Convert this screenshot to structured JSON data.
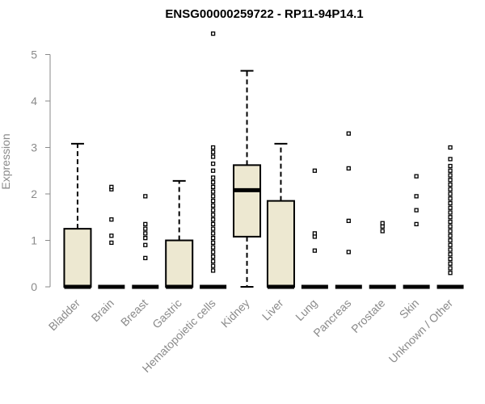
{
  "chart_data": {
    "type": "box",
    "title": "ENSG00000259722 - RP11-94P14.1",
    "ylabel": "Expression",
    "xlabel": "",
    "ylim": [
      0,
      5.5
    ],
    "yticks": [
      0,
      1,
      2,
      3,
      4,
      5
    ],
    "grid": false,
    "legend": "none",
    "box_fill": "#ede8d1",
    "line_color": "#000000",
    "axis_color": "#8a8a8a",
    "categories": [
      "Bladder",
      "Brain",
      "Breast",
      "Gastric",
      "Hematopoietic cells",
      "Kidney",
      "Liver",
      "Lung",
      "Pancreas",
      "Prostate",
      "Skin",
      "Unknown / Other"
    ],
    "boxes": [
      {
        "name": "Bladder",
        "min": 0,
        "q1": 0,
        "median": 0,
        "q3": 1.25,
        "max": 3.08,
        "outliers": []
      },
      {
        "name": "Brain",
        "min": 0,
        "q1": 0,
        "median": 0,
        "q3": 0,
        "max": 0,
        "outliers": [
          0.95,
          1.1,
          1.45,
          2.1,
          2.15
        ]
      },
      {
        "name": "Breast",
        "min": 0,
        "q1": 0,
        "median": 0,
        "q3": 0,
        "max": 0,
        "outliers": [
          0.62,
          0.9,
          1.05,
          1.15,
          1.25,
          1.35,
          1.95
        ]
      },
      {
        "name": "Gastric",
        "min": 0,
        "q1": 0,
        "median": 0,
        "q3": 1.0,
        "max": 2.28,
        "outliers": []
      },
      {
        "name": "Hematopoietic cells",
        "min": 0,
        "q1": 0,
        "median": 0,
        "q3": 0,
        "max": 0,
        "outliers": [
          0.35,
          0.45,
          0.55,
          0.65,
          0.75,
          0.85,
          0.95,
          1.05,
          1.15,
          1.25,
          1.35,
          1.45,
          1.55,
          1.65,
          1.75,
          1.85,
          1.95,
          2.05,
          2.15,
          2.25,
          2.35,
          2.5,
          2.65,
          2.8,
          2.9,
          3.0,
          5.45
        ]
      },
      {
        "name": "Kidney",
        "min": 0,
        "q1": 1.08,
        "median": 2.08,
        "q3": 2.62,
        "max": 4.65,
        "outliers": []
      },
      {
        "name": "Liver",
        "min": 0,
        "q1": 0,
        "median": 0,
        "q3": 1.85,
        "max": 3.08,
        "outliers": []
      },
      {
        "name": "Lung",
        "min": 0,
        "q1": 0,
        "median": 0,
        "q3": 0,
        "max": 0,
        "outliers": [
          0.78,
          1.08,
          1.15,
          2.5
        ]
      },
      {
        "name": "Pancreas",
        "min": 0,
        "q1": 0,
        "median": 0,
        "q3": 0,
        "max": 0,
        "outliers": [
          0.75,
          1.42,
          2.55,
          3.3
        ]
      },
      {
        "name": "Prostate",
        "min": 0,
        "q1": 0,
        "median": 0,
        "q3": 0,
        "max": 0,
        "outliers": [
          1.2,
          1.3,
          1.37
        ]
      },
      {
        "name": "Skin",
        "min": 0,
        "q1": 0,
        "median": 0,
        "q3": 0,
        "max": 0,
        "outliers": [
          1.35,
          1.65,
          1.95,
          2.38
        ]
      },
      {
        "name": "Unknown / Other",
        "min": 0,
        "q1": 0,
        "median": 0,
        "q3": 0,
        "max": 0,
        "outliers": [
          0.3,
          0.4,
          0.5,
          0.6,
          0.7,
          0.8,
          0.9,
          1.0,
          1.1,
          1.2,
          1.3,
          1.4,
          1.5,
          1.6,
          1.7,
          1.8,
          1.9,
          2.0,
          2.1,
          2.2,
          2.3,
          2.4,
          2.5,
          2.6,
          2.75,
          3.0
        ]
      }
    ]
  }
}
